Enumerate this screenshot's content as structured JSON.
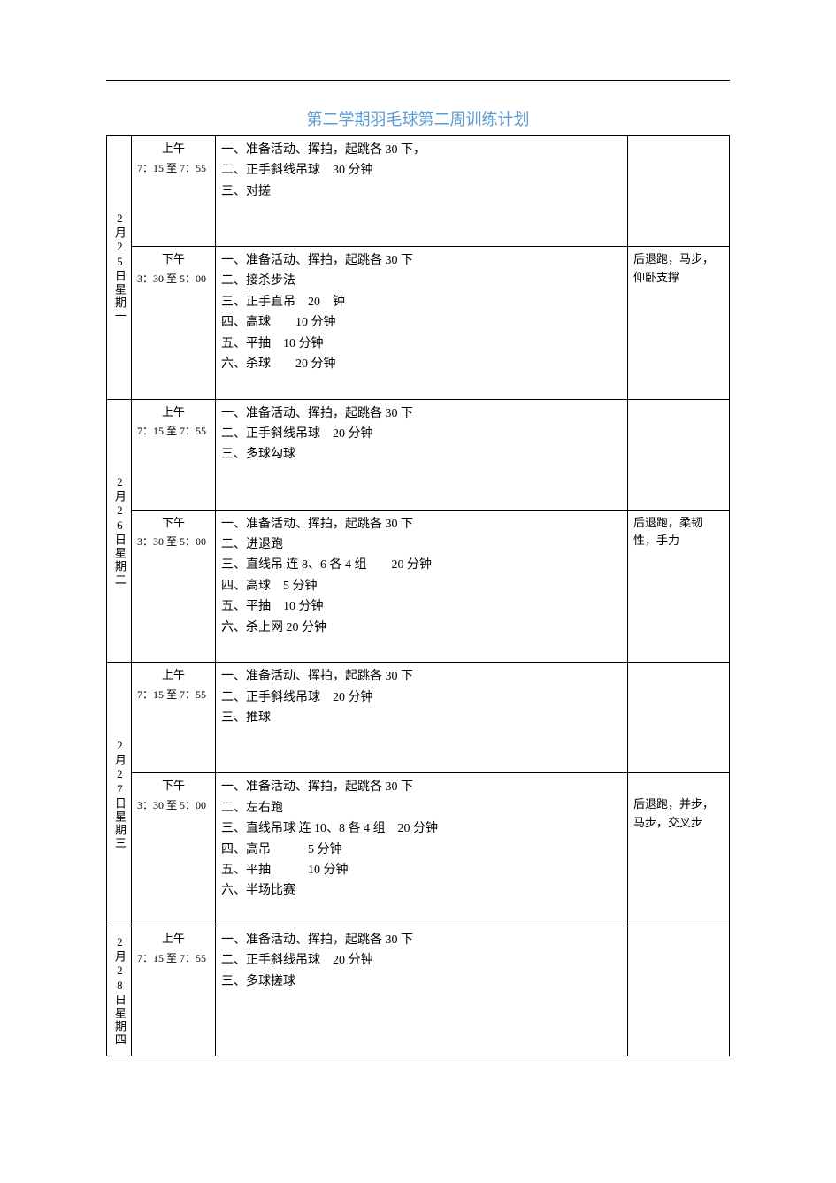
{
  "title": "第二学期羽毛球第二周训练计划",
  "days": [
    {
      "date_label": "2月25日星期一",
      "sessions": [
        {
          "period": "上午",
          "time": "7：15 至 7：55",
          "items": [
            "一、准备活动、挥拍，起跳各 30 下，",
            "二、正手斜线吊球　30 分钟",
            "三、对搓"
          ],
          "notes": ""
        },
        {
          "period": "下午",
          "time": "3：30 至 5：00",
          "items": [
            "一、准备活动、挥拍，起跳各 30 下",
            "二、接杀步法",
            "三、正手直吊　20　钟",
            "四、高球　　10 分钟",
            "五、平抽　10 分钟",
            "六、杀球　　20 分钟"
          ],
          "notes": "后退跑，马步，仰卧支撑"
        }
      ]
    },
    {
      "date_label": "2月26日星期二",
      "sessions": [
        {
          "period": "上午",
          "time": "7：15 至 7：55",
          "items": [
            "一、准备活动、挥拍，起跳各 30 下",
            "二、正手斜线吊球　20 分钟",
            "三、多球勾球"
          ],
          "notes": ""
        },
        {
          "period": "下午",
          "time": "3：30 至 5：00",
          "items": [
            "一、准备活动、挥拍，起跳各 30 下",
            "二、进退跑",
            "三、直线吊 连 8、6 各 4 组　　20 分钟",
            "四、高球　5 分钟",
            "五、平抽　10 分钟",
            "六、杀上网 20 分钟"
          ],
          "notes": "后退跑，柔韧性，手力"
        }
      ]
    },
    {
      "date_label": "2月27日星期三",
      "sessions": [
        {
          "period": "上午",
          "time": "7：15 至 7：55",
          "items": [
            "一、准备活动、挥拍，起跳各 30 下",
            "二、正手斜线吊球　20 分钟",
            "三、推球"
          ],
          "notes": ""
        },
        {
          "period": "下午",
          "time": "3：30 至 5：00",
          "items": [
            "一、准备活动、挥拍，起跳各 30 下",
            "二、左右跑",
            "三、直线吊球 连 10、8 各 4 组　20 分钟",
            "四、高吊　　　5 分钟",
            "五、平抽　　　10 分钟",
            "六、半场比赛"
          ],
          "notes": "后退跑，并步，马步，交叉步"
        }
      ]
    },
    {
      "date_label": "2月28日星期四",
      "sessions": [
        {
          "period": "上午",
          "time": "7：15 至 7：55",
          "items": [
            "一、准备活动、挥拍，起跳各 30 下",
            "二、正手斜线吊球　20 分钟",
            "三、多球搓球"
          ],
          "notes": ""
        }
      ]
    }
  ]
}
